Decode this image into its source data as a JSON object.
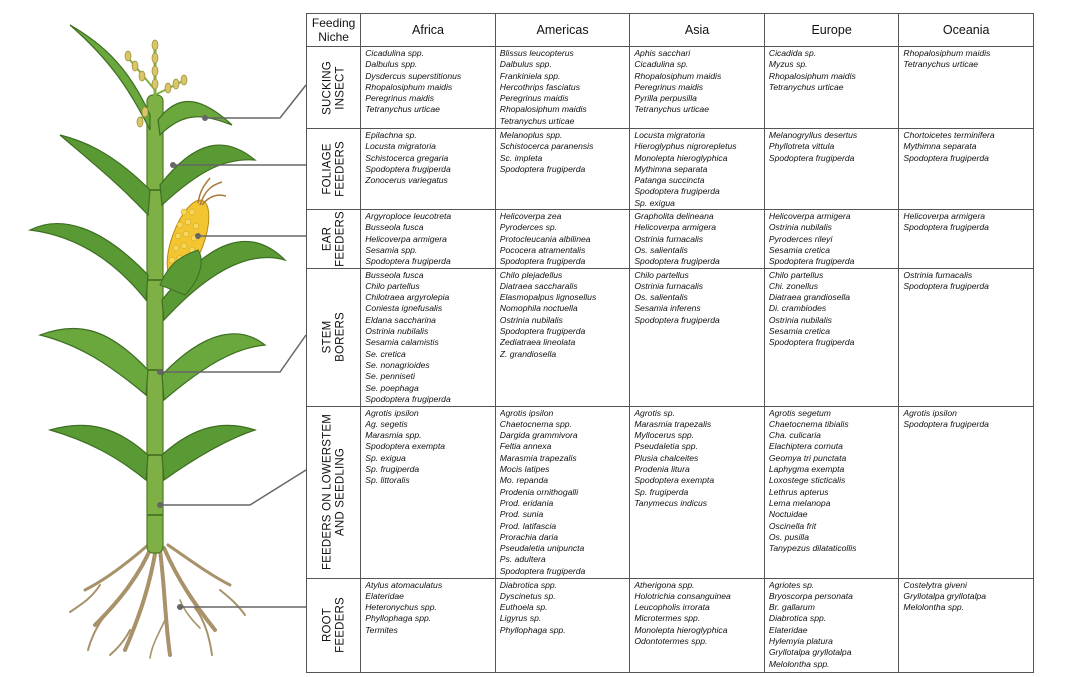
{
  "header": {
    "niche": [
      "Feeding",
      "Niche"
    ],
    "regions": [
      "Africa",
      "Americas",
      "Asia",
      "Europe",
      "Oceania"
    ]
  },
  "rows": [
    {
      "niche": [
        "SUCKING",
        "INSECT"
      ],
      "cells": [
        [
          "Cicadulina spp.",
          "Dalbulus spp.",
          "Dysdercus superstitionus",
          "Rhopalosiphum maidis",
          "Peregrinus maidis",
          "Tetranychus urticae"
        ],
        [
          "Blissus leucopterus",
          "Dalbulus spp.",
          "Frankiniela spp.",
          "Hercothrips fasciatus",
          "Peregrinus maidis",
          "Rhopalosiphum maidis",
          "Tetranychus urticae"
        ],
        [
          "Aphis sacchari",
          "Cicadulina sp.",
          "Rhopalosiphum maidis",
          "Peregrinus maidis",
          "Pyrilla perpusilla",
          "Tetranychus urticae"
        ],
        [
          "Cicadida sp.",
          "Myzus sp.",
          "Rhopalosiphum maidis",
          "Tetranychus urticae"
        ],
        [
          "Rhopalosiphum maidis",
          "Tetranychus urticae"
        ]
      ]
    },
    {
      "niche": [
        "FOLIAGE",
        "FEEDERS"
      ],
      "cells": [
        [
          "Epilachna sp.",
          "Locusta migratoria",
          "Schistocerca gregaria",
          "Spodoptera frugiperda",
          "Zonocerus variegatus"
        ],
        [
          "Melanoplus spp.",
          "Schistocerca paranensis",
          "Sc. impleta",
          "Spodoptera frugiperda"
        ],
        [
          "Locusta migratoria",
          "Hieroglyphus nigrorepletus",
          "Monolepta hieroglyphica",
          "Mythimna separata",
          "Patanga succincta",
          "Spodoptera frugiperda",
          "Sp. exigua"
        ],
        [
          "Melanogryllus desertus",
          "Phyllotreta vittula",
          "Spodoptera frugiperda"
        ],
        [
          "Chortoicetes terminifera",
          "Mythimna separata",
          "Spodoptera frugiperda"
        ]
      ]
    },
    {
      "niche": [
        "EAR",
        "FEEDERS"
      ],
      "cells": [
        [
          "Argyroploce leucotreta",
          "Busseola fusca",
          "Helicoverpa armigera",
          "Sesamia spp.",
          "Spodoptera frugiperda"
        ],
        [
          "Helicoverpa zea",
          "Pyroderces sp.",
          "Protocleucania albilinea",
          "Pococera atramentalis",
          "Spodoptera frugiperda"
        ],
        [
          "Grapholita delineana",
          "Helicoverpa armigera",
          "Ostrinia furnacalis",
          "Os. salientalis",
          "Spodoptera frugiperda"
        ],
        [
          "Helicoverpa armigera",
          "Ostrinia nubilalis",
          "Pyroderces rileyi",
          "Sesamia cretica",
          "Spodoptera frugiperda"
        ],
        [
          "Helicoverpa armigera",
          "Spodoptera frugiperda"
        ]
      ]
    },
    {
      "niche": [
        "STEM",
        "BORERS"
      ],
      "cells": [
        [
          "Busseola fusca",
          "Chilo partellus",
          "Chilotraea argyrolepia",
          "Coniesta ignefusalis",
          "Eldana saccharina",
          "Ostrinia nubilalis",
          "Sesamia calamistis",
          "Se. cretica",
          "Se. nonagrioides",
          "Se. penniseti",
          "Se. poephaga",
          "Spodoptera frugiperda"
        ],
        [
          "Chilo plejadellus",
          "Diatraea saccharalis",
          "Elasmopalpus lignosellus",
          "Nomophila noctuella",
          "Ostrinia nubilalis",
          "Spodoptera frugiperda",
          "Zediatraea lineolata",
          "Z. grandiosella"
        ],
        [
          "Chilo partellus",
          "Ostrinia furnacalis",
          "Os. salientalis",
          "Sesamia inferens",
          "Spodoptera frugiperda"
        ],
        [
          "Chilo partellus",
          "Chi. zonellus",
          "Diatraea grandiosella",
          "Di. crambiodes",
          "Ostrinia nubilalis",
          "Sesamia cretica",
          "Spodoptera frugiperda"
        ],
        [
          "Ostrinia furnacalis",
          "Spodoptera frugiperda"
        ]
      ]
    },
    {
      "niche": [
        "FEEDERS ON LOWERSTEM",
        "AND SEEDLING"
      ],
      "cells": [
        [
          "Agrotis ipsilon",
          "Ag. segetis",
          "Marasmia spp.",
          "Spodoptera exempta",
          "Sp. exigua",
          "Sp. frugiperda",
          "Sp. littoralis"
        ],
        [
          "Agrotis ipsilon",
          "Chaetocnema spp.",
          "Dargida grammivora",
          "Feltia annexa",
          "Marasmia trapezalis",
          "Mocis latipes",
          "Mo. repanda",
          "Prodenia ornithogalli",
          "Prod. eridania",
          "Prod. sunia",
          "Prod. latifascia",
          "Prorachia daria",
          "Pseudaletia unipuncta",
          "Ps. adultera",
          "Spodoptera frugiperda"
        ],
        [
          "Agrotis sp.",
          "Marasmia trapezalis",
          "Myllocerus spp.",
          "Pseudaletia spp.",
          "Plusia chalceites",
          "Prodenia litura",
          "Spodoptera exempta",
          "Sp. frugiperda",
          "Tanymecus indicus"
        ],
        [
          "Agrotis segetum",
          "Chaetocnema tibialis",
          "Cha. culicaria",
          "Elachiptera cornuta",
          "Geomya tri punctata",
          "Laphygma exempta",
          "Loxostege sticticalis",
          "Lethrus apterus",
          "Lema melanopa",
          "Noctuidae",
          "Oscinella frit",
          "Os. pusilla",
          "Tanypezus dilataticollis"
        ],
        [
          "Agrotis ipsilon",
          "Spodoptera frugiperda"
        ]
      ]
    },
    {
      "niche": [
        "ROOT",
        "FEEDERS"
      ],
      "cells": [
        [
          "Atylus atomaculatus",
          "Elateridae",
          "Heteronychus spp.",
          "Phyllophaga spp.",
          "Termites"
        ],
        [
          "Diabrotica spp.",
          "Dyscinetus sp.",
          "Euthoela sp.",
          "Ligyrus sp.",
          "Phyllophaga spp."
        ],
        [
          "Atherigona spp.",
          "Holotrichia consanguinea",
          "Leucopholis irrorata",
          "Microtermes spp.",
          "Monolepta hieroglyphica",
          "Odontotermes spp."
        ],
        [
          "Agriotes sp.",
          "Bryoscorpa personata",
          "Br. gallarum",
          "Diabrotica spp.",
          "Elateridae",
          "Hylemyia platura",
          "Gryllotalpa gryllotalpa",
          "Melolontha spp."
        ],
        [
          "Costelytra giveni",
          "Gryllotalpa gryllotalpa",
          "Melolontha spp."
        ]
      ]
    }
  ]
}
